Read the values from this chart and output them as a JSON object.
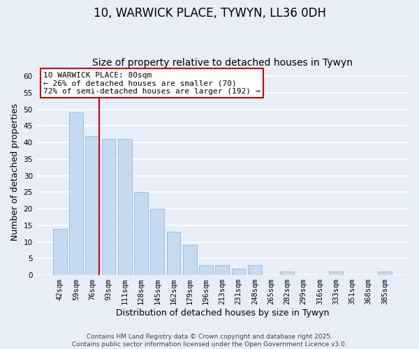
{
  "title": "10, WARWICK PLACE, TYWYN, LL36 0DH",
  "subtitle": "Size of property relative to detached houses in Tywyn",
  "xlabel": "Distribution of detached houses by size in Tywyn",
  "ylabel": "Number of detached properties",
  "bar_labels": [
    "42sqm",
    "59sqm",
    "76sqm",
    "93sqm",
    "111sqm",
    "128sqm",
    "145sqm",
    "162sqm",
    "179sqm",
    "196sqm",
    "213sqm",
    "231sqm",
    "248sqm",
    "265sqm",
    "282sqm",
    "299sqm",
    "316sqm",
    "333sqm",
    "351sqm",
    "368sqm",
    "385sqm"
  ],
  "bar_values": [
    14,
    49,
    42,
    41,
    41,
    25,
    20,
    13,
    9,
    3,
    3,
    2,
    3,
    0,
    1,
    0,
    0,
    1,
    0,
    0,
    1
  ],
  "bar_color": "#c5daf0",
  "bar_edge_color": "#9bbedd",
  "vline_color": "#cc0000",
  "ylim": [
    0,
    62
  ],
  "yticks": [
    0,
    5,
    10,
    15,
    20,
    25,
    30,
    35,
    40,
    45,
    50,
    55,
    60
  ],
  "annotation_line1": "10 WARWICK PLACE: 80sqm",
  "annotation_line2": "← 26% of detached houses are smaller (70)",
  "annotation_line3": "72% of semi-detached houses are larger (192) →",
  "annotation_box_color": "#ffffff",
  "annotation_box_edge": "#cc0000",
  "footer_text": "Contains HM Land Registry data © Crown copyright and database right 2025.\nContains public sector information licensed under the Open Government Licence v3.0.",
  "background_color": "#e8eef8",
  "grid_color": "#ffffff",
  "title_fontsize": 12,
  "subtitle_fontsize": 10,
  "axis_label_fontsize": 9,
  "tick_fontsize": 7.5,
  "annotation_fontsize": 8,
  "footer_fontsize": 6.5
}
